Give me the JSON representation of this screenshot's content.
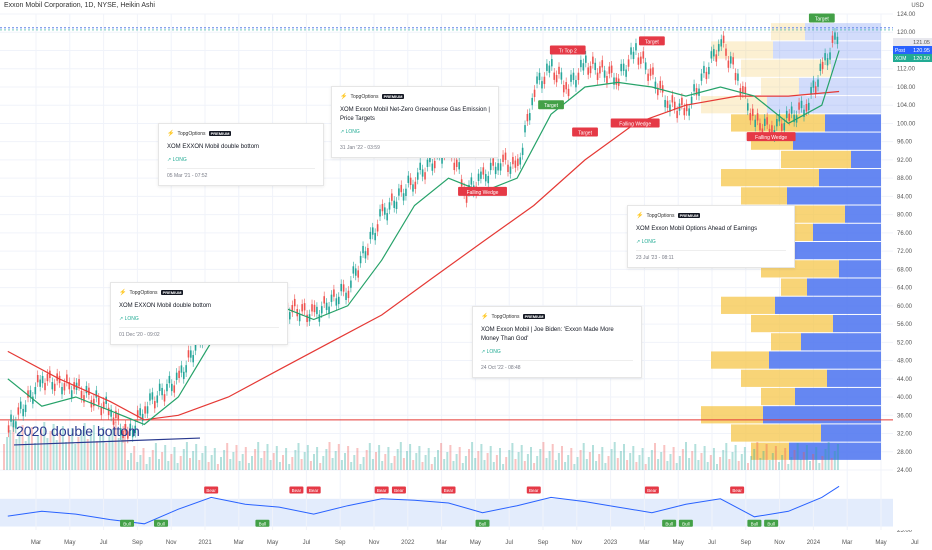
{
  "header": {
    "title": "Exxon Mobil Corporation, 1D, NYSE, Heikin Ashi",
    "currency": "USD"
  },
  "colors": {
    "ma_fast": "#26a269",
    "ma_slow": "#e53935",
    "rsi": "#2962ff",
    "volume_up": "#26a69a",
    "volume_down": "#ef5350",
    "vp_up": "#4a72f0",
    "vp_down": "#f5c54a",
    "label_green": "#43a047",
    "label_red": "#e53946"
  },
  "chart_data": {
    "type": "line",
    "style": "Heikin Ashi candles (approximated)",
    "grid": true,
    "ylim": [
      24,
      124
    ],
    "y_ticks": [
      "124.00",
      "120.00",
      "116.00",
      "112.00",
      "108.00",
      "104.00",
      "100.00",
      "96.00",
      "92.00",
      "88.00",
      "84.00",
      "80.00",
      "76.00",
      "72.00",
      "68.00",
      "64.00",
      "60.00",
      "56.00",
      "52.00",
      "48.00",
      "44.00",
      "40.00",
      "36.00",
      "32.00",
      "28.00",
      "24.00"
    ],
    "x_ticks": [
      "Mar",
      "May",
      "Jul",
      "Sep",
      "Nov",
      "2021",
      "Mar",
      "May",
      "Jul",
      "Sep",
      "Nov",
      "2022",
      "Mar",
      "May",
      "Jul",
      "Sep",
      "Nov",
      "2023",
      "Mar",
      "May",
      "Jul",
      "Sep",
      "Nov",
      "2024",
      "Mar",
      "May",
      "Jul"
    ],
    "series": [
      {
        "key": "price",
        "x": [
          "2020-03",
          "2020-05",
          "2020-07",
          "2020-09",
          "2020-10",
          "2020-11",
          "2021-01",
          "2021-03",
          "2021-05",
          "2021-07",
          "2021-09",
          "2021-11",
          "2022-01",
          "2022-03",
          "2022-05",
          "2022-06",
          "2022-07",
          "2022-08",
          "2022-09",
          "2022-10",
          "2022-11",
          "2022-12",
          "2023-01",
          "2023-03",
          "2023-04",
          "2023-06",
          "2023-07",
          "2023-09",
          "2023-10",
          "2023-11",
          "2023-12",
          "2024-01",
          "2024-02",
          "2024-03",
          "2024-04"
        ],
        "y": [
          33,
          44,
          42,
          37,
          31,
          38,
          44,
          58,
          62,
          60,
          58,
          64,
          80,
          88,
          95,
          85,
          88,
          92,
          90,
          108,
          112,
          108,
          113,
          110,
          116,
          104,
          103,
          118,
          110,
          100,
          99,
          101,
          104,
          112,
          121
        ]
      },
      {
        "key": "ma_fast",
        "x": [
          "2020-03",
          "2020-05",
          "2020-07",
          "2020-09",
          "2020-11",
          "2021-01",
          "2021-03",
          "2021-05",
          "2021-07",
          "2021-09",
          "2021-11",
          "2022-01",
          "2022-03",
          "2022-05",
          "2022-07",
          "2022-09",
          "2022-11",
          "2023-01",
          "2023-03",
          "2023-05",
          "2023-07",
          "2023-09",
          "2023-11",
          "2024-01",
          "2024-03",
          "2024-04"
        ],
        "y": [
          44,
          38,
          40,
          37,
          34,
          40,
          52,
          58,
          60,
          57,
          60,
          70,
          82,
          88,
          85,
          88,
          102,
          108,
          109,
          108,
          106,
          108,
          106,
          100,
          104,
          116
        ]
      },
      {
        "key": "ma_slow",
        "x": [
          "2020-03",
          "2020-06",
          "2020-09",
          "2020-11",
          "2021-01",
          "2021-04",
          "2021-07",
          "2021-10",
          "2022-01",
          "2022-04",
          "2022-07",
          "2022-10",
          "2023-01",
          "2023-04",
          "2023-07",
          "2023-10",
          "2024-01",
          "2024-04"
        ],
        "y": [
          50,
          44,
          39,
          35,
          36,
          40,
          46,
          52,
          58,
          66,
          74,
          82,
          92,
          100,
          104,
          106,
          106,
          107
        ]
      },
      {
        "key": "rsi",
        "range": [
          25,
          100
        ],
        "ticks": [
          "100.00",
          "75.00",
          "50.00",
          "25.00"
        ],
        "x": [
          "2020-03",
          "2020-05",
          "2020-07",
          "2020-09",
          "2020-11",
          "2021-01",
          "2021-03",
          "2021-05",
          "2021-07",
          "2021-09",
          "2021-11",
          "2022-01",
          "2022-03",
          "2022-05",
          "2022-07",
          "2022-09",
          "2022-11",
          "2023-01",
          "2023-03",
          "2023-05",
          "2023-07",
          "2023-09",
          "2023-11",
          "2024-01",
          "2024-03",
          "2024-04"
        ],
        "y": [
          45,
          52,
          48,
          40,
          34,
          55,
          72,
          62,
          58,
          48,
          60,
          70,
          68,
          64,
          50,
          60,
          72,
          66,
          58,
          50,
          62,
          70,
          44,
          52,
          72,
          88
        ]
      }
    ],
    "price_tags": [
      {
        "value": "121.05",
        "color": "#e8e8ee",
        "text_color": "#555"
      },
      {
        "value": "120.95",
        "prefix": "Post",
        "color": "#2962ff",
        "text_color": "#fff"
      },
      {
        "value": "120.50",
        "prefix": "XOM",
        "color": "#22ab94",
        "text_color": "#fff"
      }
    ],
    "horizontal_line": 35,
    "annotation_text": "2020 double bottom",
    "pattern_labels": [
      {
        "x": "2022-07",
        "y": 85,
        "text": "Falling Wedge",
        "color": "#e53946"
      },
      {
        "x": "2022-07",
        "y": 100,
        "text": "Target",
        "color": "#43a047"
      },
      {
        "x": "2022-11",
        "y": 104,
        "text": "Target",
        "color": "#43a047"
      },
      {
        "x": "2022-12",
        "y": 116,
        "text": "Tr  Top 2",
        "color": "#e53946"
      },
      {
        "x": "2023-01",
        "y": 98,
        "text": "Target",
        "color": "#e53946"
      },
      {
        "x": "2023-04",
        "y": 100,
        "text": "Falling Wedge",
        "color": "#e53946"
      },
      {
        "x": "2023-05",
        "y": 118,
        "text": "Target",
        "color": "#e53946"
      },
      {
        "x": "2023-12",
        "y": 97,
        "text": "Falling Wedge",
        "color": "#e53946"
      },
      {
        "x": "2024-03",
        "y": 123,
        "text": "Target",
        "color": "#43a047"
      }
    ],
    "rsi_labels": [
      {
        "x": "2020-10",
        "text": "Bull",
        "color": "#43a047",
        "pos": "low"
      },
      {
        "x": "2020-12",
        "text": "Bull",
        "color": "#43a047",
        "pos": "low"
      },
      {
        "x": "2021-03",
        "text": "Bear",
        "color": "#e53946",
        "pos": "high"
      },
      {
        "x": "2021-06",
        "text": "Bull",
        "color": "#43a047",
        "pos": "low"
      },
      {
        "x": "2021-08",
        "text": "Bear",
        "color": "#e53946",
        "pos": "high"
      },
      {
        "x": "2021-09",
        "text": "Bear",
        "color": "#e53946",
        "pos": "high"
      },
      {
        "x": "2022-01",
        "text": "Bear",
        "color": "#e53946",
        "pos": "high"
      },
      {
        "x": "2022-02",
        "text": "Bear",
        "color": "#e53946",
        "pos": "high"
      },
      {
        "x": "2022-05",
        "text": "Bear",
        "color": "#e53946",
        "pos": "high"
      },
      {
        "x": "2022-07",
        "text": "Bull",
        "color": "#43a047",
        "pos": "low"
      },
      {
        "x": "2022-10",
        "text": "Bear",
        "color": "#e53946",
        "pos": "high"
      },
      {
        "x": "2023-05",
        "text": "Bear",
        "color": "#e53946",
        "pos": "high"
      },
      {
        "x": "2023-06",
        "text": "Bull",
        "color": "#43a047",
        "pos": "low"
      },
      {
        "x": "2023-07",
        "text": "Bull",
        "color": "#43a047",
        "pos": "low"
      },
      {
        "x": "2023-10",
        "text": "Bear",
        "color": "#e53946",
        "pos": "high"
      },
      {
        "x": "2023-11",
        "text": "Bull",
        "color": "#43a047",
        "pos": "low"
      },
      {
        "x": "2023-12",
        "text": "Bull",
        "color": "#43a047",
        "pos": "low"
      }
    ]
  },
  "ideas": [
    {
      "brand": "TopgOptions",
      "badge": "PREMIUM",
      "title": "XOM EXXON Mobil double bottom",
      "direction": "LONG",
      "date": "01 Dec '20 - 09:02"
    },
    {
      "brand": "TopgOptions",
      "badge": "PREMIUM",
      "title": "XOM EXXON Mobil  double bottom",
      "direction": "LONG",
      "date": "05 Mar '21 - 07:52"
    },
    {
      "brand": "TopgOptions",
      "badge": "PREMIUM",
      "title": "XOM Exxon Mobil Net-Zero Greenhouse Gas Emission | Price Targets",
      "direction": "LONG",
      "date": "31 Jan '22 - 03:59"
    },
    {
      "brand": "TopgOptions",
      "badge": "PREMIUM",
      "title": "XOM Exxon Mobil | Joe Biden: 'Exxon Made More Money Than God'",
      "direction": "LONG",
      "date": "24 Oct '22 - 08:48"
    },
    {
      "brand": "TopgOptions",
      "badge": "PREMIUM",
      "title": "XOM Exxon Mobil Options Ahead of Earnings",
      "direction": "LONG",
      "date": "23 Jul '23 - 08:11"
    }
  ]
}
